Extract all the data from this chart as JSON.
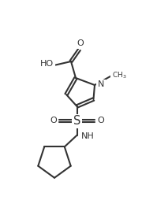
{
  "bg_color": "#ffffff",
  "line_color": "#333333",
  "lw": 1.5,
  "fs": 7.5,
  "fig_width": 1.8,
  "fig_height": 2.73,
  "dpi": 100,
  "xlim": [
    -1,
    11
  ],
  "ylim": [
    0,
    16
  ]
}
